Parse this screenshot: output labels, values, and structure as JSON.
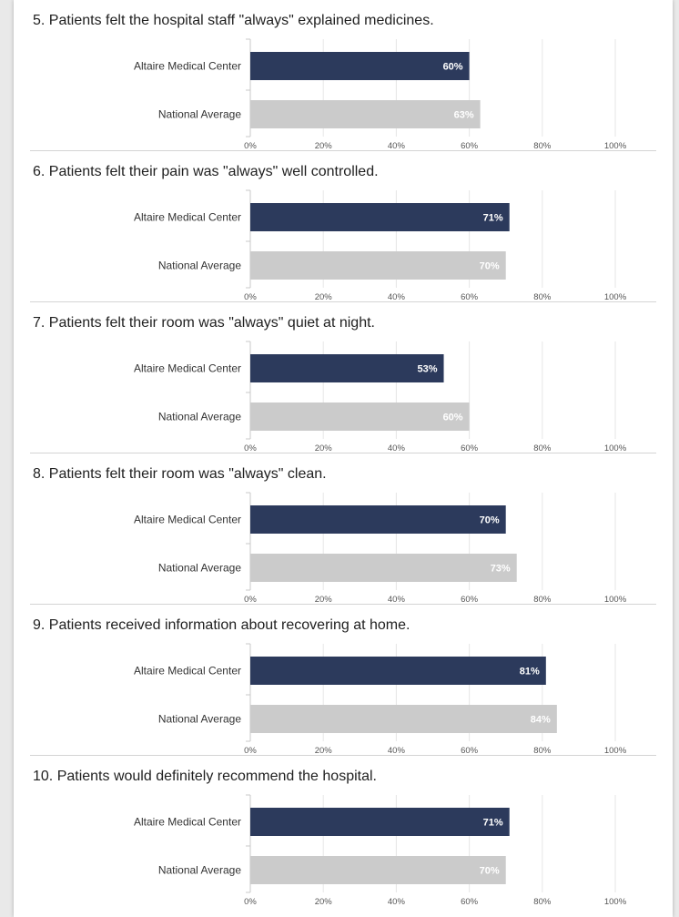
{
  "colors": {
    "hospital_bar": "#2c3a5c",
    "national_bar": "#cbcbcb",
    "grid": "#e6e6e6",
    "axis": "#c8c8c8"
  },
  "chart_data": [
    {
      "type": "bar",
      "orientation": "horizontal",
      "title": "5. Patients felt the hospital staff \"always\" explained medicines.",
      "categories": [
        "Altaire Medical Center",
        "National Average"
      ],
      "values": [
        60,
        63
      ],
      "value_labels": [
        "60%",
        "63%"
      ],
      "xticks": [
        "0%",
        "20%",
        "40%",
        "60%",
        "80%",
        "100%"
      ],
      "xlim": [
        0,
        100
      ],
      "grid": true
    },
    {
      "type": "bar",
      "orientation": "horizontal",
      "title": "6. Patients felt their pain was \"always\" well controlled.",
      "categories": [
        "Altaire Medical Center",
        "National Average"
      ],
      "values": [
        71,
        70
      ],
      "value_labels": [
        "71%",
        "70%"
      ],
      "xticks": [
        "0%",
        "20%",
        "40%",
        "60%",
        "80%",
        "100%"
      ],
      "xlim": [
        0,
        100
      ],
      "grid": true
    },
    {
      "type": "bar",
      "orientation": "horizontal",
      "title": "7. Patients felt their room was \"always\" quiet at night.",
      "categories": [
        "Altaire Medical Center",
        "National Average"
      ],
      "values": [
        53,
        60
      ],
      "value_labels": [
        "53%",
        "60%"
      ],
      "xticks": [
        "0%",
        "20%",
        "40%",
        "60%",
        "80%",
        "100%"
      ],
      "xlim": [
        0,
        100
      ],
      "grid": true
    },
    {
      "type": "bar",
      "orientation": "horizontal",
      "title": "8. Patients felt their room was \"always\" clean.",
      "categories": [
        "Altaire Medical Center",
        "National Average"
      ],
      "values": [
        70,
        73
      ],
      "value_labels": [
        "70%",
        "73%"
      ],
      "xticks": [
        "0%",
        "20%",
        "40%",
        "60%",
        "80%",
        "100%"
      ],
      "xlim": [
        0,
        100
      ],
      "grid": true
    },
    {
      "type": "bar",
      "orientation": "horizontal",
      "title": "9. Patients received information about recovering at home.",
      "categories": [
        "Altaire Medical Center",
        "National Average"
      ],
      "values": [
        81,
        84
      ],
      "value_labels": [
        "81%",
        "84%"
      ],
      "xticks": [
        "0%",
        "20%",
        "40%",
        "60%",
        "80%",
        "100%"
      ],
      "xlim": [
        0,
        100
      ],
      "grid": true
    },
    {
      "type": "bar",
      "orientation": "horizontal",
      "title": "10. Patients would definitely recommend the hospital.",
      "categories": [
        "Altaire Medical Center",
        "National Average"
      ],
      "values": [
        71,
        70
      ],
      "value_labels": [
        "71%",
        "70%"
      ],
      "xticks": [
        "0%",
        "20%",
        "40%",
        "60%",
        "80%",
        "100%"
      ],
      "xlim": [
        0,
        100
      ],
      "grid": true
    }
  ]
}
